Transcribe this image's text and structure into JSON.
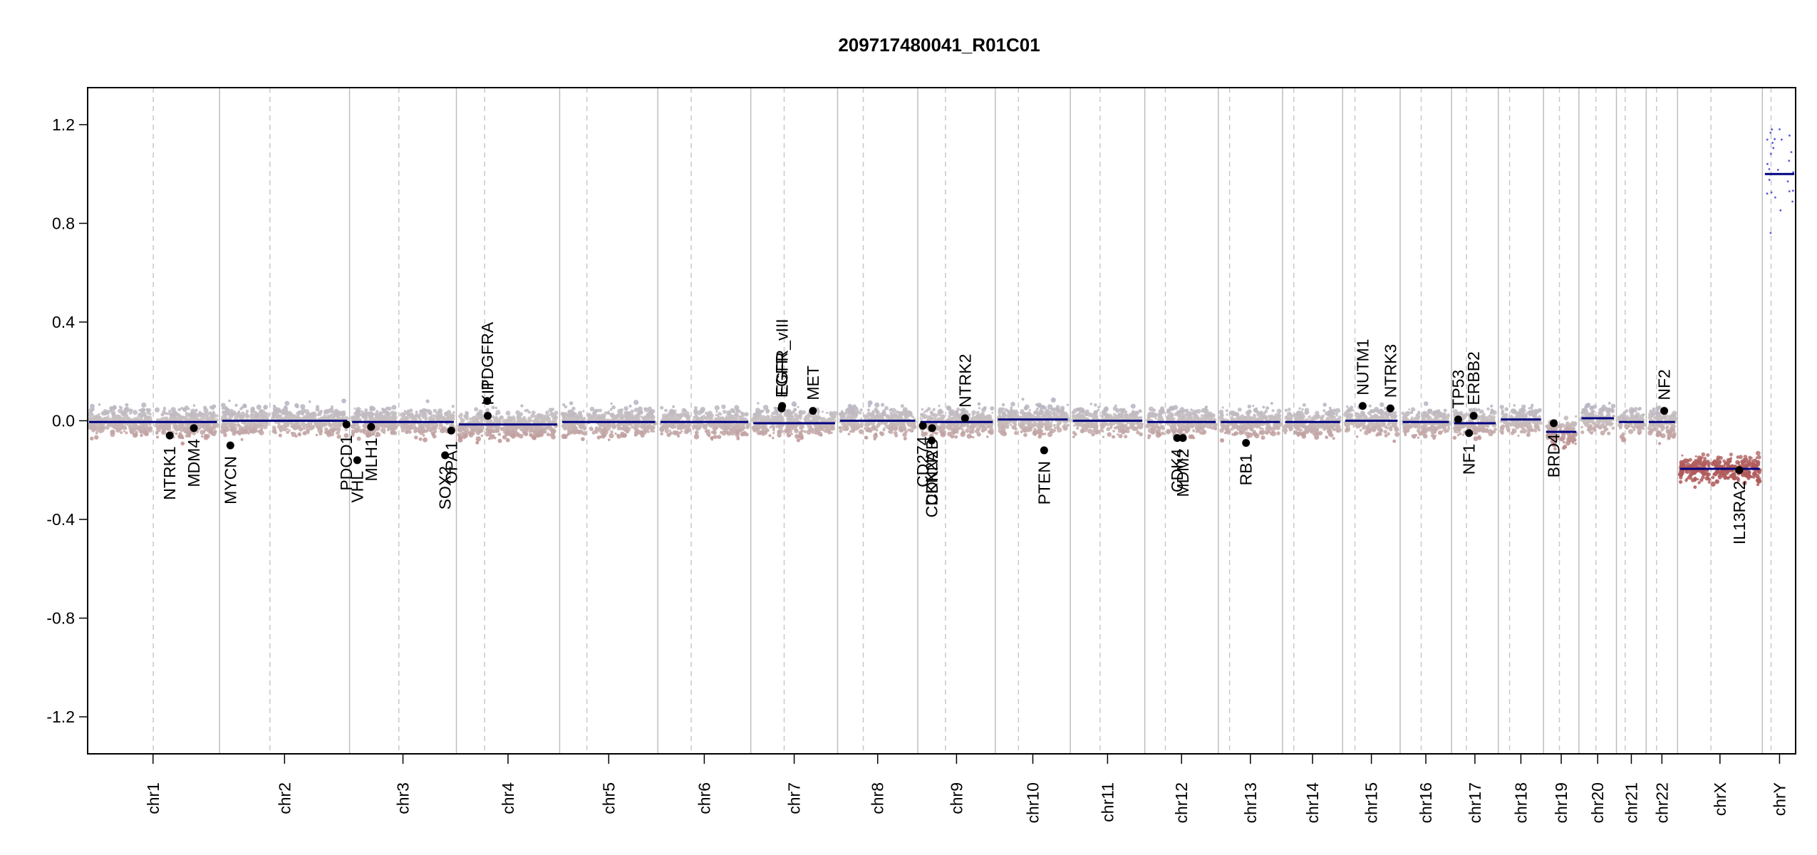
{
  "chart_data": {
    "type": "scatter",
    "title": "209717480041_R01C01",
    "xlabel": "",
    "ylabel": "",
    "ylim": [
      -1.35,
      1.35
    ],
    "y_ticks": [
      1.2,
      0.8,
      0.4,
      0.0,
      -0.4,
      -0.8,
      -1.2
    ],
    "y_tick_labels": [
      "1.2",
      "0.8",
      "0.4",
      "0.0",
      "-0.4",
      "-0.8",
      "-1.2"
    ],
    "grid": false,
    "colors": {
      "segment": "#000080",
      "gain": "#9a9cc4",
      "loss": "#b05a5a",
      "neutral": "#c8c0c0",
      "gene_marker": "#000000",
      "chrom_line": "#bdbdbd",
      "centromere_line": "#c8c8c8"
    },
    "chromosomes": [
      {
        "name": "chr1",
        "size": 249,
        "centromere": 125
      },
      {
        "name": "chr2",
        "size": 243,
        "centromere": 93
      },
      {
        "name": "chr3",
        "size": 198,
        "centromere": 91
      },
      {
        "name": "chr4",
        "size": 191,
        "centromere": 50
      },
      {
        "name": "chr5",
        "size": 181,
        "centromere": 48
      },
      {
        "name": "chr6",
        "size": 171,
        "centromere": 60
      },
      {
        "name": "chr7",
        "size": 159,
        "centromere": 60
      },
      {
        "name": "chr8",
        "size": 146,
        "centromere": 45
      },
      {
        "name": "chr9",
        "size": 141,
        "centromere": 49
      },
      {
        "name": "chr10",
        "size": 136,
        "centromere": 40
      },
      {
        "name": "chr11",
        "size": 135,
        "centromere": 53
      },
      {
        "name": "chr12",
        "size": 133,
        "centromere": 35
      },
      {
        "name": "chr13",
        "size": 115,
        "centromere": 17
      },
      {
        "name": "chr14",
        "size": 107,
        "centromere": 17
      },
      {
        "name": "chr15",
        "size": 102,
        "centromere": 19
      },
      {
        "name": "chr16",
        "size": 90,
        "centromere": 36
      },
      {
        "name": "chr17",
        "size": 81,
        "centromere": 24
      },
      {
        "name": "chr18",
        "size": 78,
        "centromere": 17
      },
      {
        "name": "chr19",
        "size": 59,
        "centromere": 26
      },
      {
        "name": "chr20",
        "size": 63,
        "centromere": 28
      },
      {
        "name": "chr21",
        "size": 48,
        "centromere": 12
      },
      {
        "name": "chr22",
        "size": 51,
        "centromere": 15
      },
      {
        "name": "chrX",
        "size": 155,
        "centromere": 60
      },
      {
        "name": "chrY",
        "size": 57,
        "centromere": 12
      }
    ],
    "segments": [
      {
        "chrom": "chr1",
        "start": 0,
        "end": 249,
        "value": -0.005
      },
      {
        "chrom": "chr2",
        "start": 0,
        "end": 243,
        "value": 0.0
      },
      {
        "chrom": "chr3",
        "start": 0,
        "end": 198,
        "value": -0.005
      },
      {
        "chrom": "chr4",
        "start": 0,
        "end": 191,
        "value": -0.015
      },
      {
        "chrom": "chr5",
        "start": 0,
        "end": 181,
        "value": -0.005
      },
      {
        "chrom": "chr6",
        "start": 0,
        "end": 171,
        "value": -0.005
      },
      {
        "chrom": "chr7",
        "start": 0,
        "end": 159,
        "value": -0.01
      },
      {
        "chrom": "chr8",
        "start": 0,
        "end": 146,
        "value": 0.0
      },
      {
        "chrom": "chr9",
        "start": 0,
        "end": 141,
        "value": -0.005
      },
      {
        "chrom": "chr10",
        "start": 0,
        "end": 136,
        "value": 0.005
      },
      {
        "chrom": "chr11",
        "start": 0,
        "end": 135,
        "value": 0.0
      },
      {
        "chrom": "chr12",
        "start": 0,
        "end": 133,
        "value": -0.005
      },
      {
        "chrom": "chr13",
        "start": 0,
        "end": 115,
        "value": -0.005
      },
      {
        "chrom": "chr14",
        "start": 0,
        "end": 107,
        "value": -0.005
      },
      {
        "chrom": "chr15",
        "start": 0,
        "end": 102,
        "value": 0.0
      },
      {
        "chrom": "chr16",
        "start": 0,
        "end": 90,
        "value": -0.005
      },
      {
        "chrom": "chr17",
        "start": 0,
        "end": 81,
        "value": -0.01
      },
      {
        "chrom": "chr18",
        "start": 0,
        "end": 78,
        "value": 0.005
      },
      {
        "chrom": "chr19",
        "start": 0,
        "end": 59,
        "value": -0.045
      },
      {
        "chrom": "chr20",
        "start": 0,
        "end": 63,
        "value": 0.01
      },
      {
        "chrom": "chr21",
        "start": 0,
        "end": 48,
        "value": -0.005
      },
      {
        "chrom": "chr22",
        "start": 0,
        "end": 51,
        "value": -0.005
      },
      {
        "chrom": "chrX",
        "start": 0,
        "end": 155,
        "value": -0.195
      },
      {
        "chrom": "chrY",
        "start": 0,
        "end": 57,
        "value": 1.0
      }
    ],
    "genes": [
      {
        "name": "NTRK1",
        "chrom": "chr1",
        "pos": 157,
        "value": -0.06
      },
      {
        "name": "MDM4",
        "chrom": "chr1",
        "pos": 204,
        "value": -0.03
      },
      {
        "name": "MYCN",
        "chrom": "chr2",
        "pos": 16,
        "value": -0.1
      },
      {
        "name": "PDCD1",
        "chrom": "chr2",
        "pos": 242,
        "value": -0.015
      },
      {
        "name": "VHL",
        "chrom": "chr3",
        "pos": 10,
        "value": -0.16
      },
      {
        "name": "MLH1",
        "chrom": "chr3",
        "pos": 37,
        "value": -0.025
      },
      {
        "name": "SOX2",
        "chrom": "chr3",
        "pos": 181,
        "value": -0.14
      },
      {
        "name": "OPA1",
        "chrom": "chr3",
        "pos": 193,
        "value": -0.04
      },
      {
        "name": "PDGFRA",
        "chrom": "chr4",
        "pos": 55,
        "value": 0.08
      },
      {
        "name": "KIT",
        "chrom": "chr4",
        "pos": 56,
        "value": 0.02
      },
      {
        "name": "EGFR",
        "chrom": "chr7",
        "pos": 55,
        "value": 0.05
      },
      {
        "name": "EGFR_vIII",
        "chrom": "chr7",
        "pos": 56,
        "value": 0.06
      },
      {
        "name": "MET",
        "chrom": "chr7",
        "pos": 116,
        "value": 0.04
      },
      {
        "name": "CD274",
        "chrom": "chr9",
        "pos": 5,
        "value": -0.02
      },
      {
        "name": "CDKN2A",
        "chrom": "chr9",
        "pos": 22,
        "value": -0.08
      },
      {
        "name": "CDKN2B",
        "chrom": "chr9",
        "pos": 23,
        "value": -0.03
      },
      {
        "name": "NTRK2",
        "chrom": "chr9",
        "pos": 87,
        "value": 0.01
      },
      {
        "name": "PTEN",
        "chrom": "chr10",
        "pos": 90,
        "value": -0.12
      },
      {
        "name": "CDK4",
        "chrom": "chr12",
        "pos": 58,
        "value": -0.07
      },
      {
        "name": "MDM2",
        "chrom": "chr12",
        "pos": 69,
        "value": -0.07
      },
      {
        "name": "RB1",
        "chrom": "chr13",
        "pos": 49,
        "value": -0.09
      },
      {
        "name": "NUTM1",
        "chrom": "chr15",
        "pos": 34,
        "value": 0.06
      },
      {
        "name": "NTRK3",
        "chrom": "chr15",
        "pos": 88,
        "value": 0.05
      },
      {
        "name": "TP53",
        "chrom": "chr17",
        "pos": 8,
        "value": 0.005
      },
      {
        "name": "NF1",
        "chrom": "chr17",
        "pos": 29,
        "value": -0.05
      },
      {
        "name": "ERBB2",
        "chrom": "chr17",
        "pos": 38,
        "value": 0.02
      },
      {
        "name": "BRD4",
        "chrom": "chr19",
        "pos": 15,
        "value": -0.01
      },
      {
        "name": "NF2",
        "chrom": "chr22",
        "pos": 30,
        "value": 0.04
      },
      {
        "name": "IL13RA2",
        "chrom": "chrX",
        "pos": 115,
        "value": -0.2
      }
    ]
  }
}
